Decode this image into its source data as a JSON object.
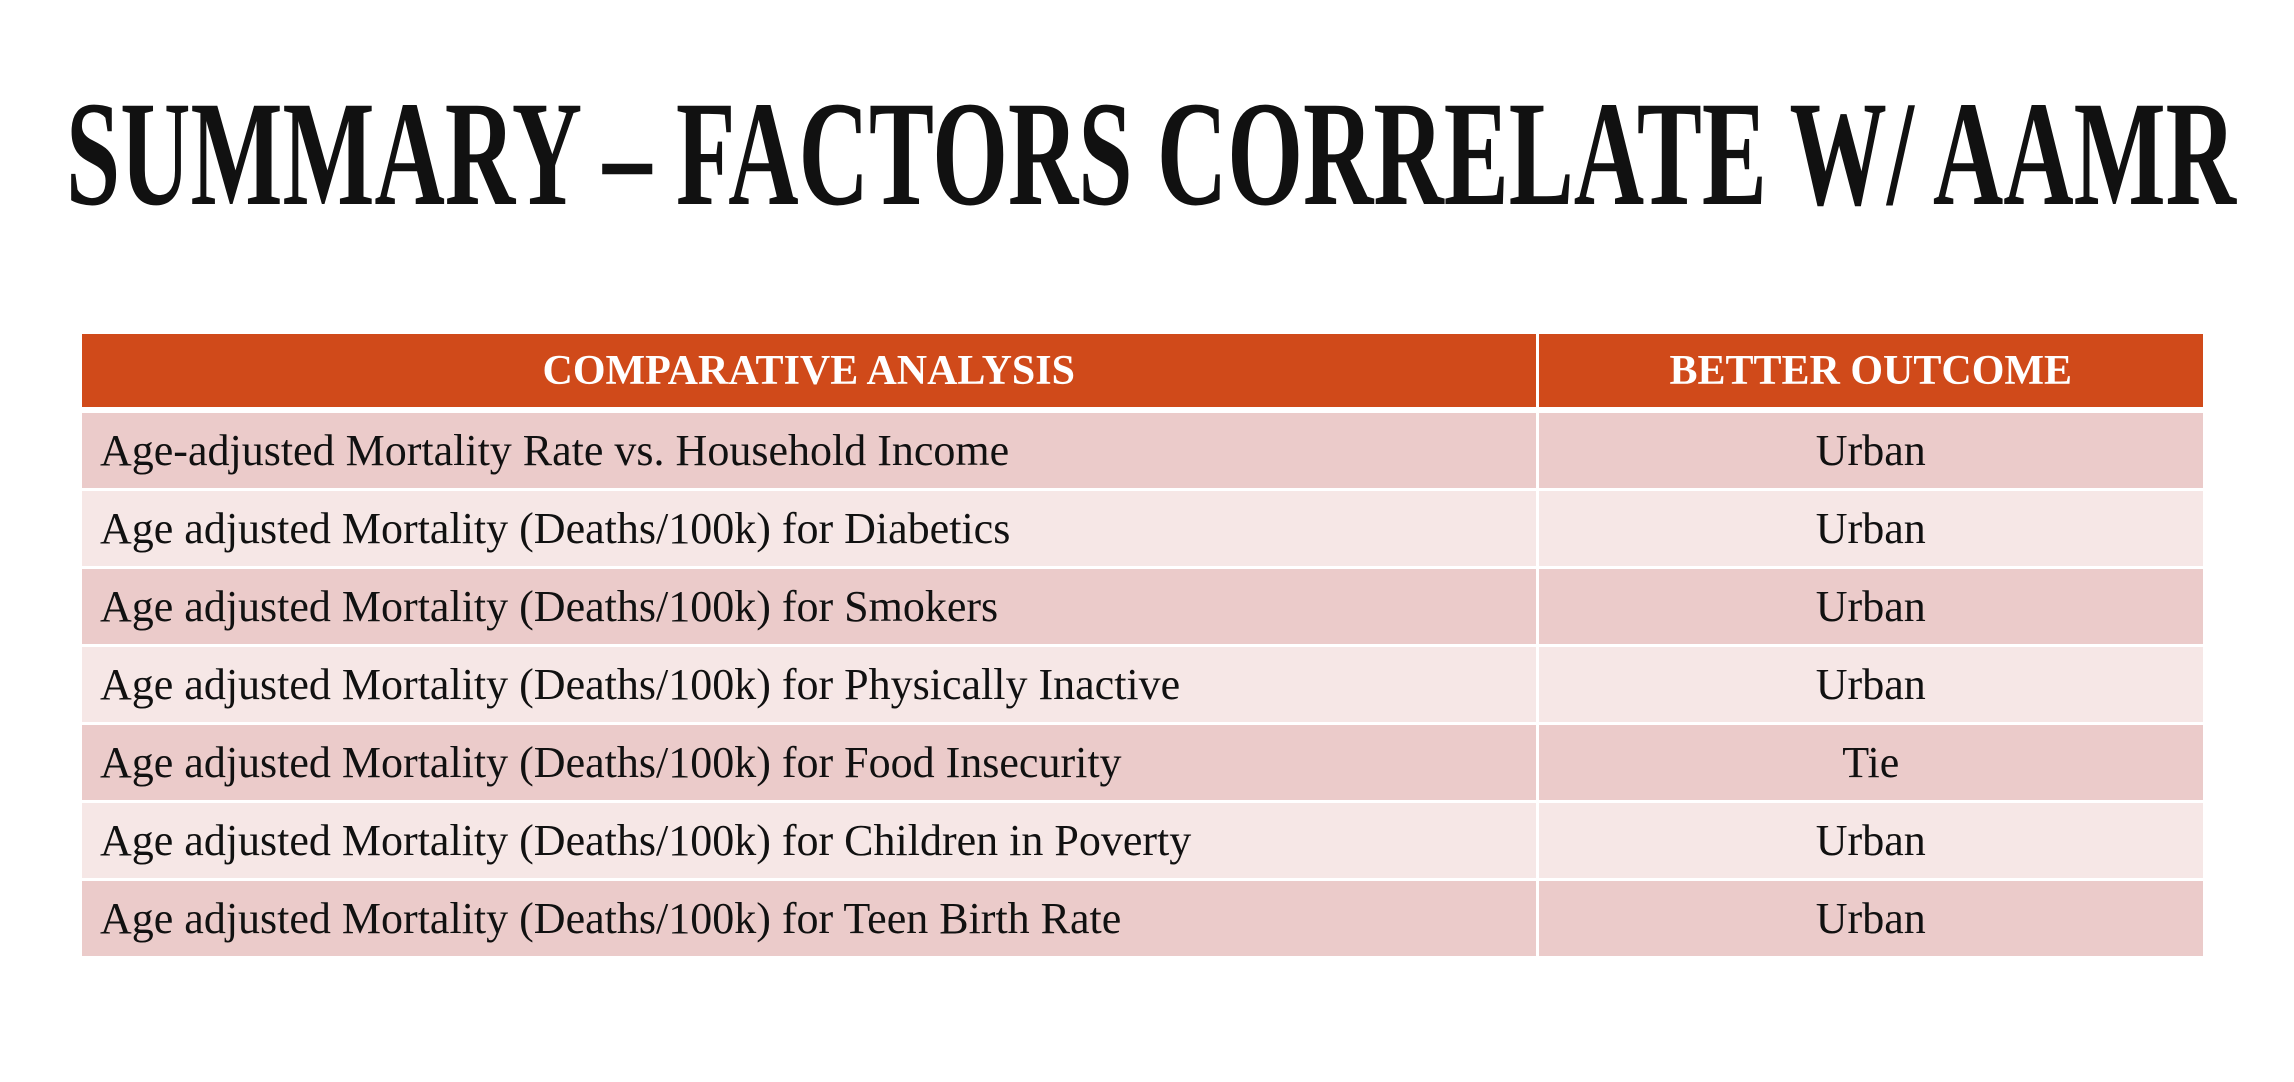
{
  "title": "SUMMARY – FACTORS CORRELATE W/  AAMR",
  "table": {
    "header": [
      "COMPARATIVE ANALYSIS",
      "BETTER OUTCOME"
    ],
    "rows": [
      [
        "Age-adjusted Mortality Rate vs. Household Income",
        "Urban"
      ],
      [
        "Age adjusted Mortality (Deaths/100k) for Diabetics",
        "Urban"
      ],
      [
        "Age adjusted Mortality (Deaths/100k) for Smokers",
        "Urban"
      ],
      [
        "Age adjusted Mortality (Deaths/100k) for Physically Inactive",
        "Urban"
      ],
      [
        "Age adjusted Mortality (Deaths/100k) for Food Insecurity",
        "Tie"
      ],
      [
        "Age adjusted Mortality (Deaths/100k) for Children in Poverty",
        "Urban"
      ],
      [
        "Age adjusted Mortality (Deaths/100k) for Teen Birth Rate",
        "Urban"
      ]
    ]
  }
}
